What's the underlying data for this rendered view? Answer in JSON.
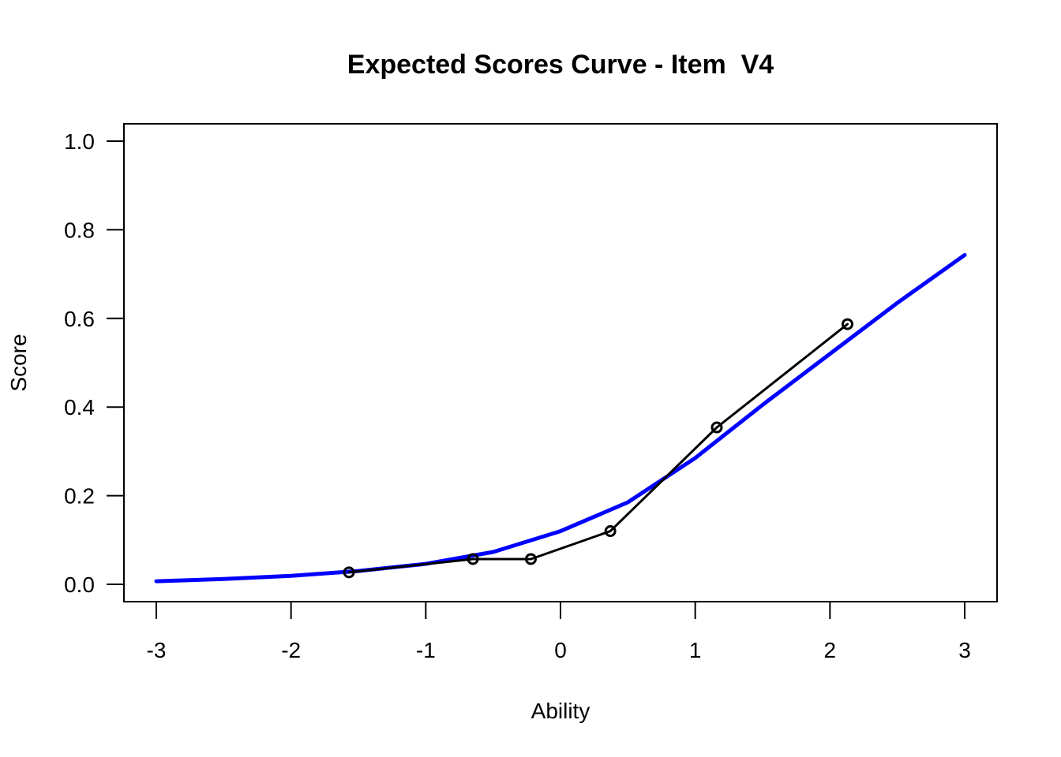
{
  "chart_data": {
    "type": "line",
    "title": "Expected Scores Curve - Item  V4",
    "xlabel": "Ability",
    "ylabel": "Score",
    "xlim": [
      -3,
      3
    ],
    "ylim": [
      0,
      1
    ],
    "x_ticks": [
      "-3",
      "-2",
      "-1",
      "0",
      "1",
      "2",
      "3"
    ],
    "y_ticks": [
      "0.0",
      "0.2",
      "0.4",
      "0.6",
      "0.8",
      "1.0"
    ],
    "grid": false,
    "legend": "none",
    "series": [
      {
        "style": "line",
        "color": "#0000ff",
        "x": [
          -3.0,
          -2.5,
          -2.0,
          -1.5,
          -1.0,
          -0.5,
          0.0,
          0.5,
          1.0,
          1.5,
          2.0,
          2.5,
          3.0
        ],
        "y": [
          0.007,
          0.012,
          0.019,
          0.03,
          0.046,
          0.073,
          0.12,
          0.185,
          0.285,
          0.405,
          0.52,
          0.635,
          0.743
        ]
      },
      {
        "style": "line+points",
        "color": "#000000",
        "x": [
          -1.57,
          -0.65,
          -0.22,
          0.37,
          1.16,
          2.13
        ],
        "y": [
          0.027,
          0.057,
          0.057,
          0.12,
          0.354,
          0.587
        ]
      }
    ]
  }
}
